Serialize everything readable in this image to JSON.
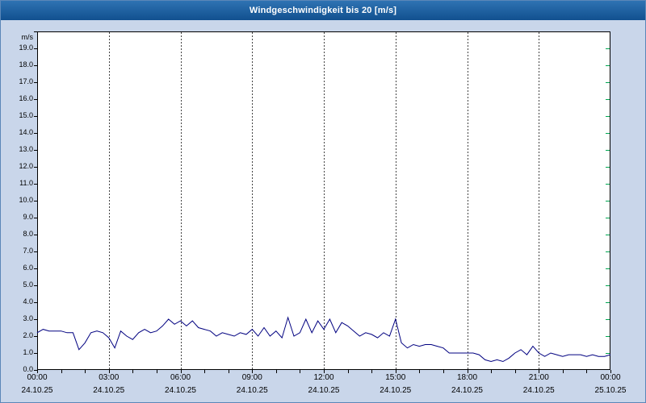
{
  "colors": {
    "background": "#c9d6ea",
    "titlebar_top": "#2f73b3",
    "titlebar_bottom": "#11508f",
    "title_text": "#ffffff",
    "plot_background": "#ffffff",
    "plot_border": "#000000",
    "grid": "#444444",
    "axis_text": "#000000",
    "line": "#000080",
    "right_ticks": "#00a550"
  },
  "chart_data": {
    "type": "line",
    "title": "Windgeschwindigkeit bis 20 [m/s]",
    "ylabel_unit": "m/s",
    "ylim": [
      0,
      20
    ],
    "ytick_step": 1.0,
    "ytick_labels": [
      "0.0",
      "1.0",
      "2.0",
      "3.0",
      "4.0",
      "5.0",
      "6.0",
      "7.0",
      "8.0",
      "9.0",
      "10.0",
      "11.0",
      "12.0",
      "13.0",
      "14.0",
      "15.0",
      "16.0",
      "17.0",
      "18.0",
      "19.0"
    ],
    "grid": "vertical-dashed",
    "legend": "none",
    "xticks": [
      {
        "hour": 0,
        "time": "00:00",
        "date": "24.10.25"
      },
      {
        "hour": 3,
        "time": "03:00",
        "date": "24.10.25"
      },
      {
        "hour": 6,
        "time": "06:00",
        "date": "24.10.25"
      },
      {
        "hour": 9,
        "time": "09:00",
        "date": "24.10.25"
      },
      {
        "hour": 12,
        "time": "12:00",
        "date": "24.10.25"
      },
      {
        "hour": 15,
        "time": "15:00",
        "date": "24.10.25"
      },
      {
        "hour": 18,
        "time": "18:00",
        "date": "24.10.25"
      },
      {
        "hour": 21,
        "time": "21:00",
        "date": "24.10.25"
      },
      {
        "hour": 24,
        "time": "00:00",
        "date": "25.10.25"
      }
    ],
    "x_start_hour": 0,
    "x_step_hours": 0.25,
    "series": [
      {
        "name": "Windgeschwindigkeit",
        "color": "#000080",
        "values": [
          2.2,
          2.4,
          2.3,
          2.3,
          2.3,
          2.2,
          2.2,
          1.2,
          1.6,
          2.2,
          2.3,
          2.2,
          1.9,
          1.3,
          2.3,
          2.0,
          1.8,
          2.2,
          2.4,
          2.2,
          2.3,
          2.6,
          3.0,
          2.7,
          2.9,
          2.6,
          2.9,
          2.5,
          2.4,
          2.3,
          2.0,
          2.2,
          2.1,
          2.0,
          2.2,
          2.1,
          2.4,
          2.0,
          2.5,
          2.0,
          2.3,
          1.9,
          3.1,
          2.0,
          2.2,
          3.0,
          2.2,
          2.9,
          2.4,
          3.0,
          2.2,
          2.8,
          2.6,
          2.3,
          2.0,
          2.2,
          2.1,
          1.9,
          2.2,
          2.0,
          3.0,
          1.6,
          1.3,
          1.5,
          1.4,
          1.5,
          1.5,
          1.4,
          1.3,
          1.0,
          1.0,
          1.0,
          1.0,
          1.0,
          0.9,
          0.6,
          0.5,
          0.6,
          0.5,
          0.7,
          1.0,
          1.2,
          0.9,
          1.4,
          1.0,
          0.8,
          1.0,
          0.9,
          0.8,
          0.9,
          0.9,
          0.9,
          0.8,
          0.9,
          0.8,
          0.8,
          0.9
        ]
      }
    ]
  }
}
